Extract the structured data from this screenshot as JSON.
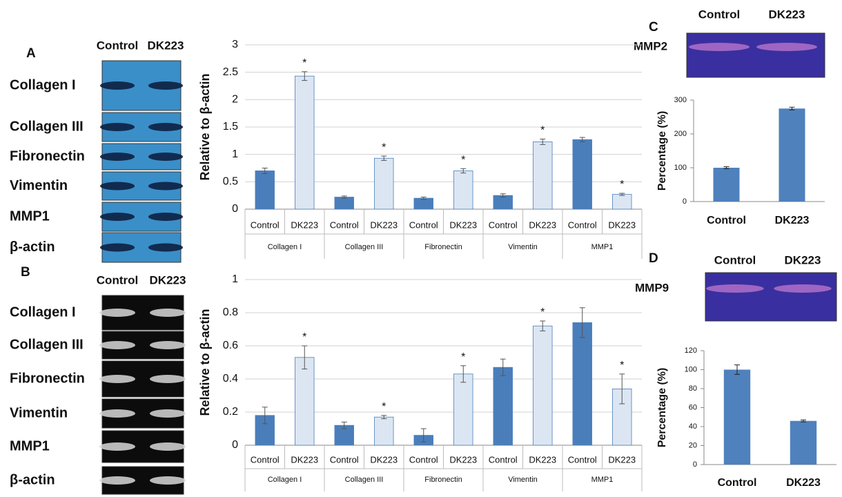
{
  "panel_labels": [
    "A",
    "B",
    "C",
    "D"
  ],
  "blots": [
    {
      "columns": [
        "Control",
        "DK223"
      ],
      "rows": [
        "Collagen I",
        "Collagen III",
        "Fibronectin",
        "Vimentin",
        "MMP1",
        "β-actin"
      ]
    },
    {
      "columns": [
        "Control",
        "DK223"
      ],
      "rows": [
        "Collagen I",
        "Collagen III",
        "Fibronectin",
        "Vimentin",
        "MMP1",
        "β-actin"
      ]
    },
    {
      "columns": [
        "Control",
        "DK223"
      ],
      "rows": [
        "MMP2"
      ]
    },
    {
      "columns": [
        "Control",
        "DK223"
      ],
      "rows": [
        "MMP9"
      ]
    }
  ],
  "chart_data": [
    {
      "type": "bar",
      "y_label": "Relative to β-actin",
      "categories": [
        "Collagen I",
        "Collagen III",
        "Fibronectin",
        "Vimentin",
        "MMP1"
      ],
      "series": [
        {
          "name": "Control",
          "color": "#4a7ebb",
          "values": [
            0.7,
            0.22,
            0.2,
            0.25,
            1.27
          ],
          "errors": [
            0.05,
            0.02,
            0.02,
            0.03,
            0.04
          ]
        },
        {
          "name": "DK223",
          "color": "#dce6f2",
          "values": [
            2.43,
            0.93,
            0.7,
            1.23,
            0.27
          ],
          "errors": [
            0.08,
            0.04,
            0.04,
            0.05,
            0.02
          ],
          "annotations": [
            "*",
            "*",
            "*",
            "*",
            "*"
          ]
        }
      ],
      "ylim": [
        0,
        3
      ],
      "yticks": [
        0,
        0.5,
        1,
        1.5,
        2,
        2.5,
        3
      ],
      "grid": true
    },
    {
      "type": "bar",
      "y_label": "Relative to β-actin",
      "categories": [
        "Collagen I",
        "Collagen III",
        "Fibronectin",
        "Vimentin",
        "MMP1"
      ],
      "series": [
        {
          "name": "Control",
          "color": "#4a7ebb",
          "values": [
            0.18,
            0.12,
            0.06,
            0.47,
            0.74
          ],
          "errors": [
            0.05,
            0.02,
            0.04,
            0.05,
            0.09
          ]
        },
        {
          "name": "DK223",
          "color": "#dce6f2",
          "values": [
            0.53,
            0.17,
            0.43,
            0.72,
            0.34
          ],
          "errors": [
            0.07,
            0.01,
            0.05,
            0.03,
            0.09
          ],
          "annotations": [
            "*",
            "*",
            "*",
            "*",
            "*"
          ]
        }
      ],
      "ylim": [
        0,
        1
      ],
      "yticks": [
        0,
        0.2,
        0.4,
        0.6,
        0.8,
        1
      ],
      "grid": true
    },
    {
      "type": "bar",
      "y_label": "Percentage (%)",
      "categories": [
        "Control",
        "DK223"
      ],
      "color": "#4f81bd",
      "values": [
        100,
        275
      ],
      "errors": [
        3,
        4
      ],
      "ylim": [
        0,
        300
      ],
      "yticks": [
        0,
        100,
        200,
        300
      ],
      "grid": false
    },
    {
      "type": "bar",
      "y_label": "Percentage (%)",
      "categories": [
        "Control",
        "DK223"
      ],
      "color": "#4f81bd",
      "values": [
        100,
        46
      ],
      "errors": [
        5,
        1
      ],
      "ylim": [
        0,
        120
      ],
      "yticks": [
        0,
        20,
        40,
        60,
        80,
        100,
        120
      ],
      "grid": false
    }
  ]
}
